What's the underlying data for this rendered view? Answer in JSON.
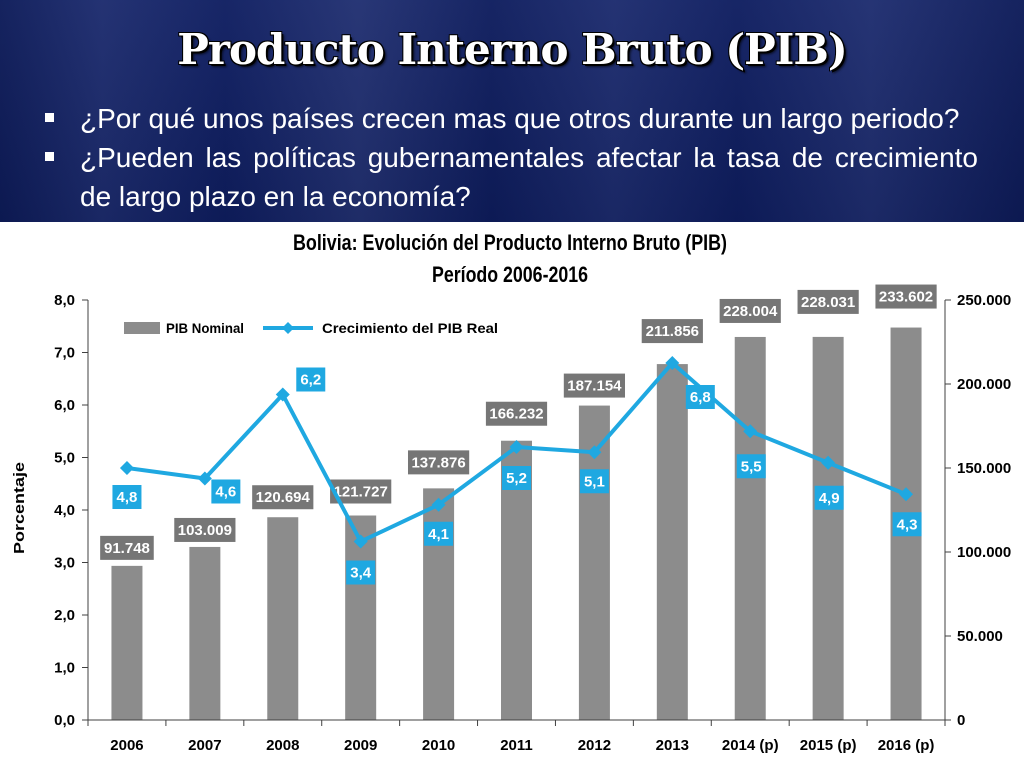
{
  "slide": {
    "title": "Producto Interno Bruto (PIB)",
    "bullets": [
      "¿Por qué unos países crecen mas que otros durante un largo periodo?",
      "¿Pueden las políticas gubernamentales afectar la tasa de crecimiento de largo plazo en la economía?"
    ],
    "bullet_icon": "square-bullet",
    "colors": {
      "header_background": "#0f1f66",
      "header_text": "#ffffff",
      "chart_background": "#ffffff"
    }
  },
  "chart_data": {
    "type": "bar",
    "title": "Bolivia: Evolución del Producto Interno Bruto (PIB)",
    "subtitle": "Período 2006-2016",
    "categories": [
      "2006",
      "2007",
      "2008",
      "2009",
      "2010",
      "2011",
      "2012",
      "2013",
      "2014 (p)",
      "2015 (p)",
      "2016 (p)"
    ],
    "series": [
      {
        "name": "PIB Nominal",
        "type": "bar",
        "axis": "right",
        "values": [
          91748,
          103009,
          120694,
          121727,
          137876,
          166232,
          187154,
          211856,
          228004,
          228031,
          233602
        ],
        "labels": [
          "91.748",
          "103.009",
          "120.694",
          "121.727",
          "137.876",
          "166.232",
          "187.154",
          "211.856",
          "228.004",
          "228.031",
          "233.602"
        ],
        "color": "#8c8c8c",
        "label_color": "#767676"
      },
      {
        "name": "Crecimiento del PIB Real",
        "type": "line",
        "axis": "left",
        "marker": "diamond",
        "values": [
          4.8,
          4.6,
          6.2,
          3.4,
          4.1,
          5.2,
          5.1,
          6.8,
          5.5,
          4.9,
          4.3
        ],
        "labels": [
          "4,8",
          "4,6",
          "6,2",
          "3,4",
          "4,1",
          "5,2",
          "5,1",
          "6,8",
          "5,5",
          "4,9",
          "4,3"
        ],
        "color": "#1fa8e1"
      }
    ],
    "ylabel": "Porcentaje",
    "y_left": {
      "range": [
        0,
        8
      ],
      "ticks": [
        0,
        1,
        2,
        3,
        4,
        5,
        6,
        7,
        8
      ],
      "tick_labels": [
        "0,0",
        "1,0",
        "2,0",
        "3,0",
        "4,0",
        "5,0",
        "6,0",
        "7,0",
        "8,0"
      ]
    },
    "y_right": {
      "range": [
        0,
        250000
      ],
      "ticks": [
        0,
        50000,
        100000,
        150000,
        200000,
        250000
      ],
      "tick_labels": [
        "0",
        "50.000",
        "100.000",
        "150.000",
        "200.000",
        "250.000"
      ]
    },
    "legend": "top-left",
    "grid": false
  }
}
